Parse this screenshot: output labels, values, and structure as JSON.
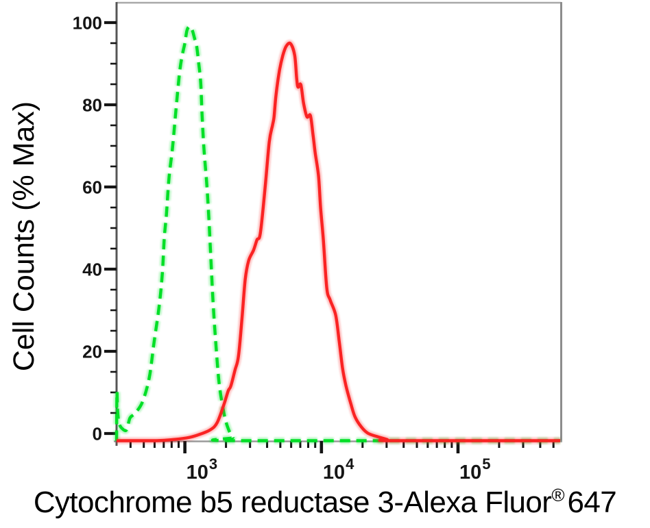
{
  "figure": {
    "y_axis_title": "Cell Counts (% Max)",
    "x_axis_title_text": "Cytochrome b5 reductase 3-Alexa Fluor",
    "x_axis_title_sup": "®",
    "x_axis_title_number": "647"
  },
  "chart_data": {
    "type": "line",
    "subtype": "flow-cytometry-histogram-overlay",
    "title": "",
    "xlabel": "Cytochrome b5 reductase 3-Alexa Fluor® 647",
    "ylabel": "Cell Counts (% Max)",
    "x_scale": "log10",
    "xlim": [
      316,
      560000
    ],
    "ylim": [
      0,
      100
    ],
    "grid": false,
    "legend": "none",
    "y_major_ticks": [
      0,
      20,
      40,
      60,
      80,
      100
    ],
    "y_minor_step": 5,
    "x_major_ticks": [
      1000,
      10000,
      100000
    ],
    "x_tick_labels": [
      {
        "base": "10",
        "exp": "3"
      },
      {
        "base": "10",
        "exp": "4"
      },
      {
        "base": "10",
        "exp": "5"
      }
    ],
    "styles": {
      "background": "#ffffff",
      "frame_color": "#999999",
      "left_axis_color": "#555555",
      "tick_color": "#151515",
      "label_color": "#000000"
    },
    "series": [
      {
        "name": "control-green-dashed",
        "color": "#00df26",
        "line_style": "dashed",
        "points": [
          [
            316,
            0
          ],
          [
            318,
            11.5
          ],
          [
            322,
            7
          ],
          [
            331,
            4
          ],
          [
            350,
            2.8
          ],
          [
            374,
            2.6
          ],
          [
            396,
            5.4
          ],
          [
            430,
            6.5
          ],
          [
            488,
            9.2
          ],
          [
            548,
            15
          ],
          [
            594,
            23.4
          ],
          [
            645,
            31.6
          ],
          [
            682,
            39.4
          ],
          [
            707,
            48.6
          ],
          [
            732,
            54
          ],
          [
            766,
            63
          ],
          [
            812,
            70
          ],
          [
            860,
            79
          ],
          [
            912,
            87.7
          ],
          [
            955,
            92
          ],
          [
            1000,
            95
          ],
          [
            1035,
            98
          ],
          [
            1084,
            99
          ],
          [
            1135,
            98
          ],
          [
            1176,
            96.2
          ],
          [
            1219,
            94.3
          ],
          [
            1262,
            90.2
          ],
          [
            1306,
            85.6
          ],
          [
            1336,
            77.9
          ],
          [
            1383,
            69.2
          ],
          [
            1449,
            61
          ],
          [
            1500,
            52.9
          ],
          [
            1553,
            43
          ],
          [
            1608,
            33.2
          ],
          [
            1684,
            23.4
          ],
          [
            1783,
            13.6
          ],
          [
            1935,
            6.5
          ],
          [
            2075,
            2.9
          ],
          [
            2247,
            0.8
          ],
          [
            2438,
            0
          ],
          [
            560000,
            0
          ]
        ]
      },
      {
        "name": "stained-red-solid",
        "color": "#fa2323",
        "line_style": "solid",
        "points": [
          [
            316,
            0
          ],
          [
            620,
            0
          ],
          [
            840,
            0.3
          ],
          [
            1084,
            0.8
          ],
          [
            1306,
            1.6
          ],
          [
            1535,
            2.6
          ],
          [
            1723,
            4.3
          ],
          [
            1935,
            8.7
          ],
          [
            2075,
            11.9
          ],
          [
            2172,
            13.1
          ],
          [
            2329,
            16.9
          ],
          [
            2466,
            20.1
          ],
          [
            2613,
            28.8
          ],
          [
            2766,
            38.5
          ],
          [
            2930,
            43
          ],
          [
            3178,
            45.5
          ],
          [
            3374,
            48
          ],
          [
            3570,
            49.6
          ],
          [
            3872,
            60.6
          ],
          [
            4148,
            71.4
          ],
          [
            4391,
            75.5
          ],
          [
            4496,
            77.4
          ],
          [
            4655,
            82.8
          ],
          [
            4929,
            88.5
          ],
          [
            5217,
            92.1
          ],
          [
            5527,
            94.3
          ],
          [
            5936,
            94.9
          ],
          [
            6367,
            92.1
          ],
          [
            6591,
            86.4
          ],
          [
            6744,
            84.5
          ],
          [
            7062,
            85.1
          ],
          [
            7395,
            80.7
          ],
          [
            7831,
            77.4
          ],
          [
            8297,
            77.7
          ],
          [
            8683,
            73
          ],
          [
            8988,
            68.9
          ],
          [
            9524,
            63.2
          ],
          [
            9860,
            55.6
          ],
          [
            10330,
            48
          ],
          [
            10940,
            36.5
          ],
          [
            11590,
            33.6
          ],
          [
            12710,
            30
          ],
          [
            13480,
            23.9
          ],
          [
            14280,
            17.3
          ],
          [
            15130,
            13.1
          ],
          [
            16450,
            8.7
          ],
          [
            17620,
            5.7
          ],
          [
            19570,
            3.3
          ],
          [
            21840,
            1.8
          ],
          [
            25470,
            1
          ],
          [
            30250,
            0.3
          ],
          [
            33800,
            0
          ],
          [
            560000,
            0
          ]
        ]
      }
    ]
  }
}
